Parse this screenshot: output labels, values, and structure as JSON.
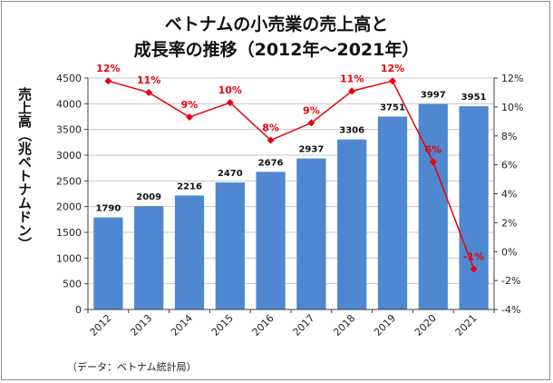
{
  "title_line1": "ベトナムの小売業の売上高と",
  "title_line2": "成長率の推移（2012年～2021年）",
  "source_note": "（データ：ベトナム統計局）",
  "colors": {
    "bar": "#4f88d0",
    "line": "#e8000b",
    "axis": "#404040",
    "grid": "#c8c8c8"
  },
  "chart_data": {
    "type": "bar",
    "categories": [
      "2012",
      "2013",
      "2014",
      "2015",
      "2016",
      "2017",
      "2018",
      "2019",
      "2020",
      "2021"
    ],
    "ylabel": "売上高（兆ベトナムドン）",
    "ylim": [
      0,
      4500
    ],
    "yticks": [
      "0",
      "500",
      "1000",
      "1500",
      "2000",
      "2500",
      "3000",
      "3500",
      "4000",
      "4500"
    ],
    "y2lim": [
      -4,
      12
    ],
    "y2ticks": [
      "-4%",
      "-2%",
      "0%",
      "2%",
      "4%",
      "6%",
      "8%",
      "10%",
      "12%"
    ],
    "series": [
      {
        "type": "bar",
        "axis": "left",
        "values": [
          1790,
          2009,
          2216,
          2470,
          2676,
          2937,
          3306,
          3751,
          3997,
          3951
        ],
        "labels": [
          "1790",
          "2009",
          "2216",
          "2470",
          "2676",
          "2937",
          "3306",
          "3751",
          "3997",
          "3951"
        ]
      },
      {
        "type": "line",
        "axis": "right",
        "values": [
          11.8,
          11.0,
          9.3,
          10.3,
          7.7,
          8.9,
          11.1,
          11.8,
          6.2,
          -1.2
        ],
        "labels": [
          "12%",
          "11%",
          "9%",
          "10%",
          "8%",
          "9%",
          "11%",
          "12%",
          "6%",
          "-1%"
        ]
      }
    ],
    "grid": true
  }
}
